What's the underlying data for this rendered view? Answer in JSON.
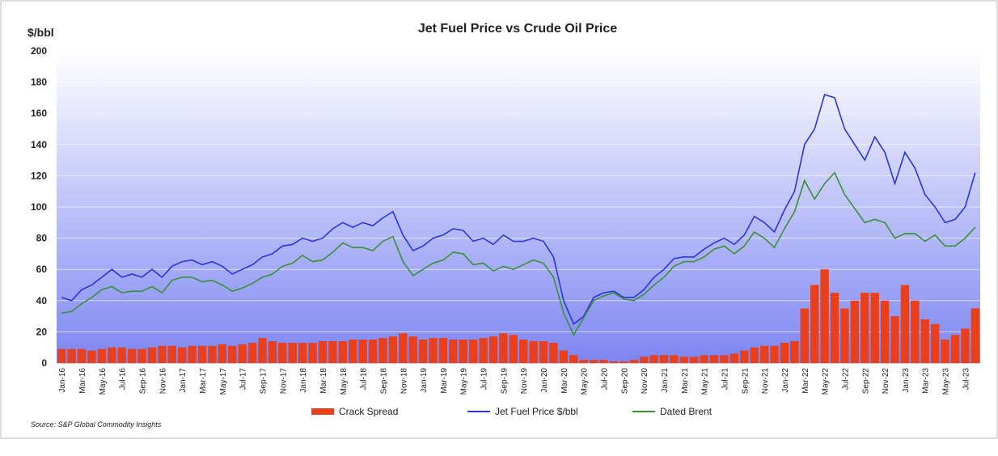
{
  "chart_data": {
    "type": "line",
    "title": "Jet Fuel Price vs Crude Oil Price",
    "y_label": "$/bbl",
    "source": "Source: S&P Global Commodity Insights",
    "categories": [
      "Jan-16",
      null,
      "Mar-16",
      null,
      "May-16",
      null,
      "Jul-16",
      null,
      "Sep-16",
      null,
      "Nov-16",
      null,
      "Jan-17",
      null,
      "Mar-17",
      null,
      "May-17",
      null,
      "Jul-17",
      null,
      "Sep-17",
      null,
      "Nov-17",
      null,
      "Jan-18",
      null,
      "Mar-18",
      null,
      "May-18",
      null,
      "Jul-18",
      null,
      "Sep-18",
      null,
      "Nov-18",
      null,
      "Jan-19",
      null,
      "Mar-19",
      null,
      "May-19",
      null,
      "Jul-19",
      null,
      "Sep-19",
      null,
      "Nov-19",
      null,
      "Jan-20",
      null,
      "Mar-20",
      null,
      "May-20",
      null,
      "Jul-20",
      null,
      "Sep-20",
      null,
      "Nov-20",
      null,
      "Jan-21",
      null,
      "Mar-21",
      null,
      "May-21",
      null,
      "Jul-21",
      null,
      "Sep-21",
      null,
      "Nov-21",
      null,
      "Jan-22",
      null,
      "Mar-22",
      null,
      "May-22",
      null,
      "Jul-22",
      null,
      "Sep-22",
      null,
      "Nov-22",
      null,
      "Jan-23",
      null,
      "Mar-23",
      null,
      "May-23",
      null,
      "Jul-23",
      null
    ],
    "series": [
      {
        "name": "Crack Spread",
        "kind": "bar",
        "color": "#e8401c",
        "values": [
          9,
          9,
          9,
          8,
          9,
          10,
          10,
          9,
          9,
          10,
          11,
          11,
          10,
          11,
          11,
          11,
          12,
          11,
          12,
          13,
          16,
          14,
          13,
          13,
          13,
          13,
          14,
          14,
          14,
          15,
          15,
          15,
          16,
          17,
          19,
          17,
          15,
          16,
          16,
          15,
          15,
          15,
          16,
          17,
          19,
          18,
          15,
          14,
          14,
          13,
          8,
          5,
          2,
          2,
          2,
          1,
          1,
          2,
          4,
          5,
          5,
          5,
          4,
          4,
          5,
          5,
          5,
          6,
          8,
          10,
          11,
          11,
          13,
          14,
          35,
          50,
          60,
          45,
          35,
          40,
          45,
          45,
          40,
          30,
          50,
          40,
          28,
          25,
          15,
          18,
          22,
          35
        ]
      },
      {
        "name": "Jet Fuel Price $/bbl",
        "kind": "line",
        "color": "#2b35d9",
        "values": [
          42,
          40,
          47,
          50,
          55,
          60,
          55,
          57,
          55,
          60,
          55,
          62,
          65,
          66,
          63,
          65,
          62,
          57,
          60,
          63,
          68,
          70,
          75,
          76,
          80,
          78,
          80,
          86,
          90,
          87,
          90,
          88,
          93,
          97,
          82,
          72,
          75,
          80,
          82,
          86,
          85,
          78,
          80,
          76,
          82,
          78,
          78,
          80,
          78,
          68,
          40,
          25,
          30,
          42,
          45,
          46,
          42,
          42,
          47,
          55,
          60,
          67,
          68,
          68,
          73,
          77,
          80,
          76,
          82,
          94,
          90,
          84,
          98,
          110,
          140,
          150,
          172,
          170,
          150,
          140,
          130,
          145,
          135,
          115,
          135,
          125,
          108,
          100,
          90,
          92,
          100,
          122
        ]
      },
      {
        "name": "Dated Brent",
        "kind": "line",
        "color": "#3a8f3a",
        "values": [
          32,
          33,
          38,
          42,
          47,
          49,
          45,
          46,
          46,
          49,
          45,
          53,
          55,
          55,
          52,
          53,
          50,
          46,
          48,
          51,
          55,
          57,
          62,
          64,
          69,
          65,
          66,
          71,
          77,
          74,
          74,
          72,
          78,
          81,
          65,
          56,
          60,
          64,
          66,
          71,
          70,
          63,
          64,
          59,
          62,
          60,
          63,
          66,
          64,
          55,
          32,
          18,
          29,
          40,
          43,
          45,
          41,
          40,
          44,
          50,
          55,
          62,
          65,
          65,
          68,
          73,
          75,
          70,
          75,
          84,
          80,
          74,
          86,
          97,
          117,
          105,
          115,
          122,
          108,
          99,
          90,
          92,
          90,
          80,
          83,
          83,
          78,
          82,
          75,
          75,
          80,
          87
        ]
      }
    ],
    "ylim": [
      0,
      200
    ],
    "yticks": [
      0,
      20,
      40,
      60,
      80,
      100,
      120,
      140,
      160,
      180,
      200
    ],
    "grid": true
  }
}
